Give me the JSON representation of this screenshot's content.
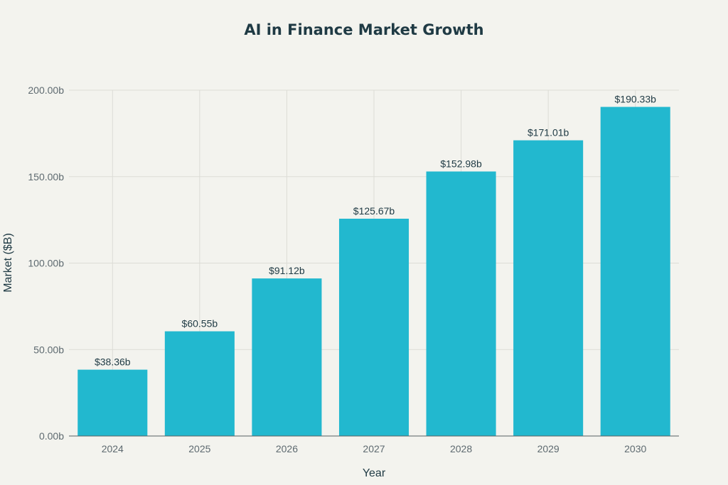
{
  "chart_data": {
    "type": "bar",
    "title": "AI in Finance Market Growth",
    "xlabel": "Year",
    "ylabel": "Market ($B)",
    "categories": [
      "2024",
      "2025",
      "2026",
      "2027",
      "2028",
      "2029",
      "2030"
    ],
    "values": [
      38.36,
      60.55,
      91.12,
      125.67,
      152.98,
      171.01,
      190.33
    ],
    "data_labels": [
      "$38.36b",
      "$60.55b",
      "$91.12b",
      "$125.67b",
      "$152.98b",
      "$171.01b",
      "$190.33b"
    ],
    "ylim": [
      0,
      200
    ],
    "yticks": [
      0,
      50,
      100,
      150,
      200
    ],
    "ytick_labels": [
      "0.00b",
      "50.00b",
      "100.00b",
      "150.00b",
      "200.00b"
    ],
    "grid": true,
    "legend": "none",
    "bar_color": "#22b8cf",
    "text_color": "#1f3a44",
    "background": "#f3f3ee"
  }
}
